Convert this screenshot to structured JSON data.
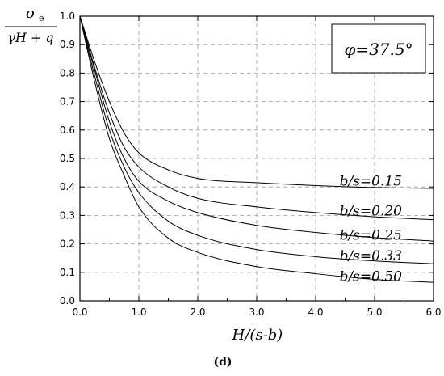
{
  "chart_data": {
    "type": "line",
    "title": "",
    "ylabel": {
      "numerator": "σ",
      "numerator_sub": "e",
      "denominator": "γH + q"
    },
    "xlabel": "H/(s-b)",
    "panel_label": "(d)",
    "annotation": "φ=37.5°",
    "xlim": [
      0,
      6
    ],
    "ylim": [
      0,
      1
    ],
    "x_ticks": [
      "0.0",
      "1.0",
      "2.0",
      "3.0",
      "4.0",
      "5.0",
      "6.0"
    ],
    "y_ticks": [
      "0.0",
      "0.1",
      "0.2",
      "0.3",
      "0.4",
      "0.5",
      "0.6",
      "0.7",
      "0.8",
      "0.9",
      "1.0"
    ],
    "grid": true,
    "x": [
      0,
      0.25,
      0.5,
      0.75,
      1.0,
      1.5,
      2.0,
      3.0,
      4.0,
      5.0,
      6.0
    ],
    "series": [
      {
        "name": "b/s=0.15",
        "values": [
          1.0,
          0.84,
          0.7,
          0.59,
          0.52,
          0.46,
          0.43,
          0.415,
          0.405,
          0.398,
          0.395
        ]
      },
      {
        "name": "b/s=0.20",
        "values": [
          1.0,
          0.82,
          0.66,
          0.54,
          0.47,
          0.4,
          0.36,
          0.33,
          0.31,
          0.295,
          0.285
        ]
      },
      {
        "name": "b/s=0.25",
        "values": [
          1.0,
          0.81,
          0.63,
          0.5,
          0.42,
          0.35,
          0.31,
          0.265,
          0.24,
          0.222,
          0.21
        ]
      },
      {
        "name": "b/s=0.33",
        "values": [
          1.0,
          0.79,
          0.6,
          0.47,
          0.38,
          0.28,
          0.23,
          0.18,
          0.155,
          0.14,
          0.13
        ]
      },
      {
        "name": "b/s=0.50",
        "values": [
          1.0,
          0.77,
          0.57,
          0.44,
          0.33,
          0.22,
          0.17,
          0.12,
          0.095,
          0.075,
          0.065
        ]
      }
    ],
    "series_label_y": [
      0.405,
      0.3,
      0.215,
      0.142,
      0.07
    ]
  }
}
